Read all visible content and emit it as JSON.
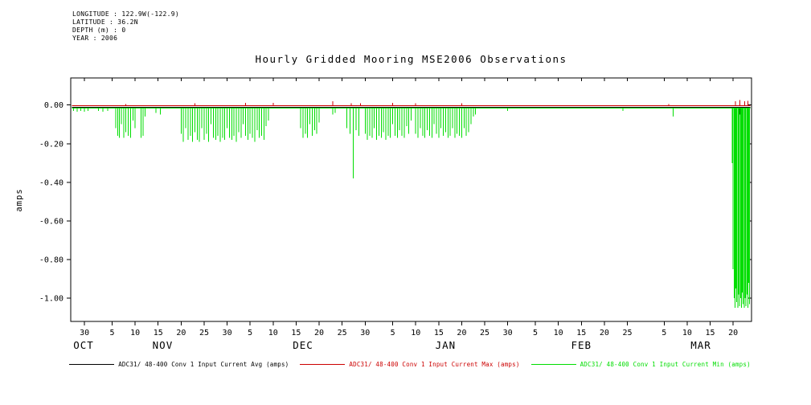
{
  "header": {
    "lines": [
      "LONGITUDE : 122.9W(-122.9)",
      "LATITUDE : 36.2N",
      "DEPTH (m) : 0",
      "YEAR : 2006"
    ]
  },
  "chart_data": {
    "type": "line",
    "title": "Hourly Gridded Mooring MSE2006 Observations",
    "ylabel": "amps",
    "xlabel": "",
    "grid": false,
    "legend_position": "bottom",
    "ylim": [
      -1.12,
      0.14
    ],
    "xlim_days": [
      0,
      148
    ],
    "y_ticks": [
      0.0,
      -0.2,
      -0.4,
      -0.6,
      -0.8,
      -1.0
    ],
    "x_ticks": [
      {
        "day": 3,
        "label": "30"
      },
      {
        "day": 9,
        "label": "5"
      },
      {
        "day": 14,
        "label": "10"
      },
      {
        "day": 19,
        "label": "15"
      },
      {
        "day": 24,
        "label": "20"
      },
      {
        "day": 29,
        "label": "25"
      },
      {
        "day": 34,
        "label": "30"
      },
      {
        "day": 39,
        "label": "5"
      },
      {
        "day": 44,
        "label": "10"
      },
      {
        "day": 49,
        "label": "15"
      },
      {
        "day": 54,
        "label": "20"
      },
      {
        "day": 59,
        "label": "25"
      },
      {
        "day": 64,
        "label": "30"
      },
      {
        "day": 70,
        "label": "5"
      },
      {
        "day": 75,
        "label": "10"
      },
      {
        "day": 80,
        "label": "15"
      },
      {
        "day": 85,
        "label": "20"
      },
      {
        "day": 90,
        "label": "25"
      },
      {
        "day": 95,
        "label": "30"
      },
      {
        "day": 101,
        "label": "5"
      },
      {
        "day": 106,
        "label": "10"
      },
      {
        "day": 111,
        "label": "15"
      },
      {
        "day": 116,
        "label": "20"
      },
      {
        "day": 121,
        "label": "25"
      },
      {
        "day": 129,
        "label": "5"
      },
      {
        "day": 134,
        "label": "10"
      },
      {
        "day": 139,
        "label": "15"
      },
      {
        "day": 144,
        "label": "20"
      }
    ],
    "month_labels": [
      {
        "day": 2.8,
        "label": "OCT"
      },
      {
        "day": 20,
        "label": "NOV"
      },
      {
        "day": 50.5,
        "label": "DEC"
      },
      {
        "day": 81.5,
        "label": "JAN"
      },
      {
        "day": 111,
        "label": "FEB"
      },
      {
        "day": 137,
        "label": "MAR"
      }
    ],
    "series": [
      {
        "key": "avg",
        "name": "ADC31/ 48-400 Conv 1 Input Current  Avg (amps)",
        "color": "#000000",
        "baseline": -0.012,
        "spikes": [
          [
            27,
            -0.03
          ],
          [
            36,
            -0.03
          ],
          [
            40,
            -0.03
          ],
          [
            61.4,
            -0.06
          ],
          [
            66,
            -0.03
          ],
          [
            80,
            -0.03
          ],
          [
            144.5,
            -0.04
          ],
          [
            145.5,
            -0.05
          ],
          [
            146.5,
            -0.04
          ]
        ]
      },
      {
        "key": "max",
        "name": "ADC31/ 48-400 Conv 1 Input Current  Max (amps)",
        "color": "#cc0000",
        "baseline": -0.004,
        "spikes": [
          [
            12,
            0.005
          ],
          [
            27,
            0.008
          ],
          [
            38,
            0.012
          ],
          [
            44,
            0.012
          ],
          [
            57,
            0.02
          ],
          [
            61,
            0.01
          ],
          [
            63,
            0.008
          ],
          [
            70,
            0.012
          ],
          [
            75,
            0.01
          ],
          [
            85,
            0.008
          ],
          [
            130,
            0.005
          ],
          [
            144.5,
            0.02
          ],
          [
            145.5,
            0.025
          ],
          [
            146.5,
            0.02
          ],
          [
            147.2,
            0.022
          ]
        ]
      },
      {
        "key": "min",
        "name": "ADC31/ 48-400 Conv 1 Input Current  Min (amps)",
        "color": "#00dd00",
        "baseline": -0.016,
        "spikes": [
          [
            0.6,
            -0.03
          ],
          [
            1.4,
            -0.035
          ],
          [
            2.2,
            -0.03
          ],
          [
            3.0,
            -0.035
          ],
          [
            3.8,
            -0.03
          ],
          [
            6.0,
            -0.03
          ],
          [
            7.0,
            -0.035
          ],
          [
            8.0,
            -0.03
          ],
          [
            9.8,
            -0.12
          ],
          [
            10.2,
            -0.16
          ],
          [
            10.6,
            -0.17
          ],
          [
            11.0,
            -0.1
          ],
          [
            11.5,
            -0.17
          ],
          [
            12.0,
            -0.14
          ],
          [
            12.5,
            -0.16
          ],
          [
            13.0,
            -0.17
          ],
          [
            13.5,
            -0.08
          ],
          [
            14.0,
            -0.12
          ],
          [
            15.3,
            -0.17
          ],
          [
            15.7,
            -0.16
          ],
          [
            16.2,
            -0.06
          ],
          [
            18.5,
            -0.04
          ],
          [
            19.5,
            -0.05
          ],
          [
            24.0,
            -0.15
          ],
          [
            24.5,
            -0.19
          ],
          [
            25.0,
            -0.12
          ],
          [
            25.5,
            -0.18
          ],
          [
            26.0,
            -0.16
          ],
          [
            26.5,
            -0.19
          ],
          [
            27.0,
            -0.14
          ],
          [
            27.5,
            -0.18
          ],
          [
            28.0,
            -0.19
          ],
          [
            28.5,
            -0.12
          ],
          [
            29.0,
            -0.18
          ],
          [
            29.5,
            -0.15
          ],
          [
            30.0,
            -0.19
          ],
          [
            30.5,
            -0.1
          ],
          [
            31.0,
            -0.17
          ],
          [
            31.5,
            -0.18
          ],
          [
            32.0,
            -0.16
          ],
          [
            32.5,
            -0.19
          ],
          [
            33.0,
            -0.17
          ],
          [
            33.5,
            -0.18
          ],
          [
            34.0,
            -0.12
          ],
          [
            34.5,
            -0.17
          ],
          [
            35.0,
            -0.18
          ],
          [
            35.5,
            -0.16
          ],
          [
            36.0,
            -0.19
          ],
          [
            36.5,
            -0.14
          ],
          [
            37.0,
            -0.17
          ],
          [
            37.5,
            -0.1
          ],
          [
            38.0,
            -0.16
          ],
          [
            38.5,
            -0.18
          ],
          [
            39.0,
            -0.15
          ],
          [
            39.5,
            -0.17
          ],
          [
            40.0,
            -0.19
          ],
          [
            40.5,
            -0.13
          ],
          [
            41.0,
            -0.17
          ],
          [
            41.5,
            -0.16
          ],
          [
            42.0,
            -0.18
          ],
          [
            42.5,
            -0.11
          ],
          [
            43.0,
            -0.08
          ],
          [
            50.0,
            -0.12
          ],
          [
            50.5,
            -0.17
          ],
          [
            51.0,
            -0.15
          ],
          [
            51.5,
            -0.17
          ],
          [
            52.0,
            -0.1
          ],
          [
            52.5,
            -0.16
          ],
          [
            53.0,
            -0.13
          ],
          [
            53.5,
            -0.15
          ],
          [
            54.0,
            -0.09
          ],
          [
            57.0,
            -0.05
          ],
          [
            57.5,
            -0.04
          ],
          [
            60.0,
            -0.12
          ],
          [
            60.7,
            -0.15
          ],
          [
            61.4,
            -0.38
          ],
          [
            62.0,
            -0.13
          ],
          [
            62.6,
            -0.16
          ],
          [
            64.0,
            -0.15
          ],
          [
            64.5,
            -0.18
          ],
          [
            65.0,
            -0.16
          ],
          [
            65.5,
            -0.17
          ],
          [
            66.0,
            -0.12
          ],
          [
            66.5,
            -0.18
          ],
          [
            67.0,
            -0.16
          ],
          [
            67.5,
            -0.17
          ],
          [
            68.0,
            -0.14
          ],
          [
            68.5,
            -0.18
          ],
          [
            69.0,
            -0.16
          ],
          [
            69.5,
            -0.17
          ],
          [
            70.0,
            -0.1
          ],
          [
            70.5,
            -0.16
          ],
          [
            71.0,
            -0.17
          ],
          [
            71.5,
            -0.13
          ],
          [
            72.0,
            -0.16
          ],
          [
            72.5,
            -0.17
          ],
          [
            73.0,
            -0.11
          ],
          [
            73.5,
            -0.15
          ],
          [
            74.0,
            -0.08
          ],
          [
            75.0,
            -0.15
          ],
          [
            75.5,
            -0.17
          ],
          [
            76.0,
            -0.12
          ],
          [
            76.5,
            -0.16
          ],
          [
            77.0,
            -0.17
          ],
          [
            77.5,
            -0.13
          ],
          [
            78.0,
            -0.16
          ],
          [
            78.5,
            -0.17
          ],
          [
            79.0,
            -0.1
          ],
          [
            79.5,
            -0.15
          ],
          [
            80.0,
            -0.17
          ],
          [
            80.5,
            -0.12
          ],
          [
            81.0,
            -0.16
          ],
          [
            81.5,
            -0.14
          ],
          [
            82.0,
            -0.17
          ],
          [
            82.5,
            -0.16
          ],
          [
            83.0,
            -0.12
          ],
          [
            83.5,
            -0.17
          ],
          [
            84.0,
            -0.15
          ],
          [
            84.5,
            -0.16
          ],
          [
            85.0,
            -0.17
          ],
          [
            85.5,
            -0.12
          ],
          [
            86.0,
            -0.16
          ],
          [
            86.5,
            -0.14
          ],
          [
            87.0,
            -0.1
          ],
          [
            87.5,
            -0.06
          ],
          [
            88.0,
            -0.05
          ],
          [
            95.0,
            -0.03
          ],
          [
            120.0,
            -0.03
          ],
          [
            131.0,
            -0.06
          ],
          [
            143.8,
            -0.3
          ],
          [
            144.0,
            -0.85
          ],
          [
            144.2,
            -1.0
          ],
          [
            144.4,
            -1.05
          ],
          [
            144.6,
            -0.95
          ],
          [
            144.8,
            -1.02
          ],
          [
            145.0,
            -1.05
          ],
          [
            145.2,
            -0.98
          ],
          [
            145.4,
            -1.04
          ],
          [
            145.6,
            -1.0
          ],
          [
            145.8,
            -1.05
          ],
          [
            146.0,
            -0.97
          ],
          [
            146.2,
            -1.03
          ],
          [
            146.4,
            -1.05
          ],
          [
            146.6,
            -1.0
          ],
          [
            146.8,
            -1.04
          ],
          [
            147.0,
            -0.98
          ],
          [
            147.2,
            -1.05
          ],
          [
            147.4,
            -0.92
          ],
          [
            147.6,
            -1.03
          ]
        ]
      }
    ]
  }
}
